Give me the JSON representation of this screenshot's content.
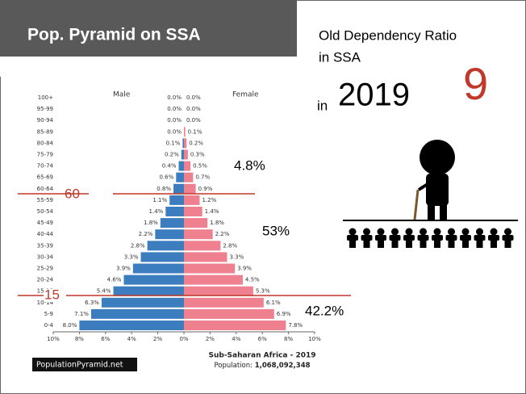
{
  "header": {
    "title": "Pop. Pyramid on SSA"
  },
  "info": {
    "line1": "Old Dependency Ratio",
    "line2": "in SSA",
    "in": "in",
    "year": "2019",
    "ratio": "9"
  },
  "annotations": [
    "60",
    "15",
    "4.8%",
    "53%",
    "42.2%"
  ],
  "chart_data": {
    "type": "pyramid",
    "categories": [
      "0-4",
      "5-9",
      "10-14",
      "15-19",
      "20-24",
      "25-29",
      "30-34",
      "35-39",
      "40-44",
      "45-49",
      "50-54",
      "55-59",
      "60-64",
      "65-69",
      "70-74",
      "75-79",
      "80-84",
      "85-89",
      "90-94",
      "95-99",
      "100+"
    ],
    "series": [
      {
        "name": "Male",
        "color": "#3b7dbf",
        "values": [
          8,
          7.1,
          6.3,
          5.4,
          4.6,
          3.9,
          3.3,
          2.8,
          2.2,
          1.8,
          1.4,
          1.1,
          0.8,
          0.6,
          0.4,
          0.2,
          0.1,
          0,
          0,
          0,
          0
        ],
        "value_labels": [
          "8.0%",
          "7.1%",
          "6.3%",
          "5.4%",
          "4.6%",
          "3.9%",
          "3.3%",
          "2.8%",
          "2.2%",
          "1.8%",
          "1.4%",
          "1.1%",
          "0.8%",
          "0.6%",
          "0.4%",
          "0.2%",
          "0.1%",
          "0.0%",
          "0.0%",
          "0.0%",
          "0.0%"
        ]
      },
      {
        "name": "Female",
        "color": "#ef8090",
        "values": [
          7.8,
          6.9,
          6.1,
          5.3,
          4.5,
          3.9,
          3.3,
          2.8,
          2.2,
          1.8,
          1.4,
          1.2,
          0.9,
          0.7,
          0.5,
          0.3,
          0.2,
          0.1,
          0,
          0,
          0
        ],
        "value_labels": [
          "7.8%",
          "6.9%",
          "6.1%",
          "5.3%",
          "4.5%",
          "3.9%",
          "3.3%",
          "2.8%",
          "2.2%",
          "1.8%",
          "1.4%",
          "1.2%",
          "0.9%",
          "0.7%",
          "0.5%",
          "0.3%",
          "0.2%",
          "0.1%",
          "0.0%",
          "0.0%",
          "0.0%"
        ]
      }
    ],
    "xlim": [
      -10,
      10
    ],
    "xticks": [
      {
        "value": -10,
        "label": "10%"
      },
      {
        "value": -8,
        "label": "8%"
      },
      {
        "value": -6,
        "label": "6%"
      },
      {
        "value": -4,
        "label": "4%"
      },
      {
        "value": -2,
        "label": "2%"
      },
      {
        "value": 0,
        "label": "0%"
      },
      {
        "value": 2,
        "label": "2%"
      },
      {
        "value": 4,
        "label": "4%"
      },
      {
        "value": 6,
        "label": "6%"
      },
      {
        "value": 8,
        "label": "8%"
      },
      {
        "value": 10,
        "label": "10%"
      }
    ],
    "title": "Sub-Saharan Africa - 2019",
    "population_label": "Population: ",
    "population": "1,068,092,348",
    "source": "PopulationPyramid.net"
  }
}
